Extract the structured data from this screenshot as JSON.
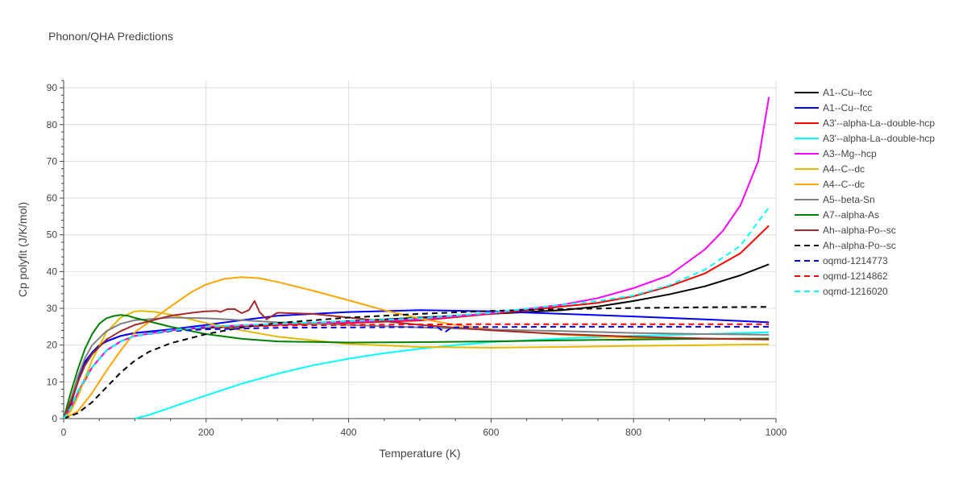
{
  "chart_data": {
    "type": "line",
    "title": "Phonon/QHA Predictions",
    "xlabel": "Temperature (K)",
    "ylabel": "Cp polyfit (J/K/mol)",
    "xlim": [
      0,
      1000
    ],
    "ylim": [
      0,
      92
    ],
    "xticks": [
      0,
      200,
      400,
      600,
      800,
      1000
    ],
    "yticks": [
      0,
      10,
      20,
      30,
      40,
      50,
      60,
      70,
      80,
      90
    ],
    "grid": true,
    "legend_position": "right",
    "series": [
      {
        "name": "A1--Cu--fcc",
        "color": "#000000",
        "dash": "solid",
        "x": [
          0,
          10,
          20,
          30,
          40,
          50,
          60,
          80,
          100,
          150,
          200,
          300,
          400,
          500,
          600,
          700,
          750,
          800,
          850,
          900,
          950,
          990
        ],
        "y": [
          0,
          4,
          10,
          15,
          18,
          20,
          21,
          22.5,
          23.3,
          24.2,
          24.7,
          25.5,
          26.5,
          27.5,
          28.5,
          29.5,
          30.5,
          32,
          33.8,
          36,
          39,
          42
        ]
      },
      {
        "name": "A1--Cu--fcc",
        "color": "#0000ff",
        "dash": "solid",
        "x": [
          0,
          10,
          20,
          30,
          40,
          50,
          60,
          80,
          100,
          150,
          200,
          250,
          300,
          400,
          500,
          600,
          700,
          800,
          900,
          990
        ],
        "y": [
          0,
          5,
          11,
          15.5,
          18,
          19.8,
          21,
          22.5,
          23.3,
          24.3,
          25.5,
          26.8,
          28,
          29,
          29.5,
          29.2,
          28.5,
          27.8,
          27,
          26.2
        ]
      },
      {
        "name": "A3'--alpha-La--double-hcp",
        "color": "#ff0000",
        "dash": "solid",
        "x": [
          0,
          10,
          20,
          40,
          60,
          80,
          100,
          150,
          200,
          300,
          400,
          500,
          600,
          700,
          750,
          800,
          850,
          900,
          950,
          990
        ],
        "y": [
          0,
          3,
          7,
          14,
          18.5,
          21,
          22.5,
          24,
          25,
          25.5,
          26,
          26.7,
          28.5,
          30.5,
          31.5,
          33.3,
          36,
          39.5,
          45,
          52.5
        ]
      },
      {
        "name": "A3'--alpha-La--double-hcp",
        "color": "#00ffff",
        "dash": "solid",
        "x": [
          100,
          120,
          150,
          200,
          250,
          300,
          350,
          400,
          450,
          500,
          550,
          600,
          700,
          800,
          900,
          990
        ],
        "y": [
          0,
          1,
          3,
          6.3,
          9.5,
          12.2,
          14.5,
          16.3,
          17.8,
          19,
          20,
          20.8,
          21.8,
          22.5,
          23,
          23.5
        ]
      },
      {
        "name": "A3--Mg--hcp",
        "color": "#ff00ff",
        "dash": "solid",
        "x": [
          0,
          10,
          20,
          30,
          40,
          60,
          80,
          100,
          150,
          200,
          300,
          400,
          500,
          600,
          700,
          750,
          800,
          850,
          900,
          925,
          950,
          975,
          990
        ],
        "y": [
          0,
          3,
          7,
          11,
          14,
          18.5,
          21,
          22.5,
          24,
          25,
          25.8,
          26.3,
          27,
          28.7,
          31,
          32.8,
          35.5,
          39,
          46,
          51,
          58,
          70,
          87.5
        ]
      },
      {
        "name": "A4--C--dc",
        "color": "#e6b800",
        "dash": "solid",
        "x": [
          0,
          10,
          20,
          30,
          40,
          60,
          80,
          100,
          110,
          130,
          150,
          200,
          250,
          300,
          400,
          500,
          600,
          700,
          800,
          900,
          990
        ],
        "y": [
          0,
          2,
          6,
          11,
          16,
          23.5,
          27.5,
          29.2,
          29.3,
          29,
          28.3,
          26,
          24,
          22.3,
          20.3,
          19.5,
          19.3,
          19.5,
          19.8,
          20,
          20.2
        ]
      },
      {
        "name": "A4--C--dc",
        "color": "#ffa500",
        "dash": "solid",
        "x": [
          0,
          20,
          40,
          60,
          80,
          100,
          150,
          180,
          200,
          225,
          250,
          275,
          300,
          350,
          400,
          450,
          500,
          550,
          600,
          700,
          800,
          900,
          990
        ],
        "y": [
          0,
          2,
          7,
          13,
          18.5,
          23.5,
          30.5,
          34.5,
          36.5,
          38,
          38.5,
          38.2,
          37.2,
          34.8,
          32.2,
          29.5,
          27.2,
          25.5,
          24.3,
          22.8,
          22,
          21.7,
          21.5
        ]
      },
      {
        "name": "A5--beta-Sn",
        "color": "#808080",
        "dash": "solid",
        "x": [
          0,
          10,
          20,
          30,
          40,
          60,
          80,
          100,
          150,
          200,
          250,
          300,
          400,
          500,
          600,
          700,
          800,
          900,
          990
        ],
        "y": [
          0,
          5,
          11.5,
          16.5,
          20,
          23.8,
          25.8,
          26.8,
          27.5,
          27.3,
          26.8,
          26.2,
          25.5,
          24.8,
          24.2,
          23.8,
          23.3,
          23,
          22.8
        ]
      },
      {
        "name": "A7--alpha-As",
        "color": "#008000",
        "dash": "solid",
        "x": [
          0,
          10,
          20,
          30,
          40,
          50,
          60,
          70,
          80,
          90,
          100,
          150,
          200,
          250,
          300,
          400,
          500,
          600,
          700,
          800,
          900,
          990
        ],
        "y": [
          0,
          7,
          13.5,
          19,
          23,
          25.8,
          27.3,
          27.9,
          28.2,
          28,
          27.4,
          25,
          23,
          21.7,
          21,
          20.7,
          20.8,
          21,
          21.3,
          21.5,
          21.7,
          21.8
        ]
      },
      {
        "name": "Ah--alpha-Po--sc",
        "color": "#a52a2a",
        "dash": "solid",
        "x": [
          0,
          10,
          20,
          30,
          40,
          60,
          80,
          100,
          150,
          180,
          200,
          215,
          220,
          230,
          240,
          250,
          260,
          268,
          275,
          285,
          300,
          350,
          400,
          500,
          600,
          700,
          800,
          900,
          990
        ],
        "y": [
          0,
          4.5,
          10,
          14.5,
          17.5,
          21.5,
          23.8,
          25.5,
          28,
          28.8,
          29.2,
          29.3,
          29,
          29.8,
          29.8,
          28.7,
          29.5,
          32,
          29,
          27,
          28.8,
          28.5,
          27.5,
          25.5,
          24,
          23,
          22.3,
          21.8,
          21.5
        ]
      },
      {
        "name": "Ah--alpha-Po--sc",
        "color": "#000000",
        "dash": "dash",
        "x": [
          0,
          20,
          40,
          60,
          80,
          100,
          120,
          150,
          180,
          200,
          250,
          300,
          400,
          500,
          600,
          700,
          800,
          900,
          990
        ],
        "y": [
          0,
          1.5,
          4.5,
          8.5,
          12.5,
          15.8,
          18.2,
          20.5,
          22,
          23,
          24.8,
          26,
          27.5,
          28.5,
          29.3,
          29.8,
          30.1,
          30.3,
          30.4
        ]
      },
      {
        "name": "oqmd-1214773",
        "color": "#0000ff",
        "dash": "dash",
        "x": [
          0,
          10,
          20,
          40,
          60,
          80,
          100,
          150,
          200,
          300,
          400,
          500,
          525,
          535,
          545,
          560,
          600,
          700,
          800,
          900,
          990
        ],
        "y": [
          0,
          3,
          7.5,
          14,
          18.5,
          21,
          22.5,
          23.8,
          24.3,
          24.7,
          24.8,
          24.9,
          24.8,
          23.5,
          24.8,
          24.9,
          24.9,
          25,
          25,
          25,
          25
        ]
      },
      {
        "name": "oqmd-1214862",
        "color": "#ff0000",
        "dash": "dash",
        "x": [
          0,
          10,
          20,
          40,
          60,
          80,
          100,
          150,
          200,
          300,
          400,
          500,
          600,
          700,
          800,
          900,
          990
        ],
        "y": [
          0,
          3,
          7.5,
          14,
          18.5,
          21,
          22.5,
          24,
          24.8,
          25.3,
          25.5,
          25.6,
          25.7,
          25.7,
          25.7,
          25.7,
          25.7
        ]
      },
      {
        "name": "oqmd-1216020",
        "color": "#00ffff",
        "dash": "dash",
        "x": [
          0,
          10,
          20,
          40,
          60,
          80,
          100,
          150,
          200,
          300,
          400,
          500,
          600,
          700,
          750,
          800,
          850,
          900,
          950,
          990
        ],
        "y": [
          0,
          3,
          7.5,
          14,
          18.5,
          21,
          22.5,
          24,
          25,
          25.8,
          26.5,
          27.3,
          28.8,
          31,
          32,
          33.5,
          36.3,
          40.5,
          47,
          57.5
        ]
      }
    ]
  }
}
